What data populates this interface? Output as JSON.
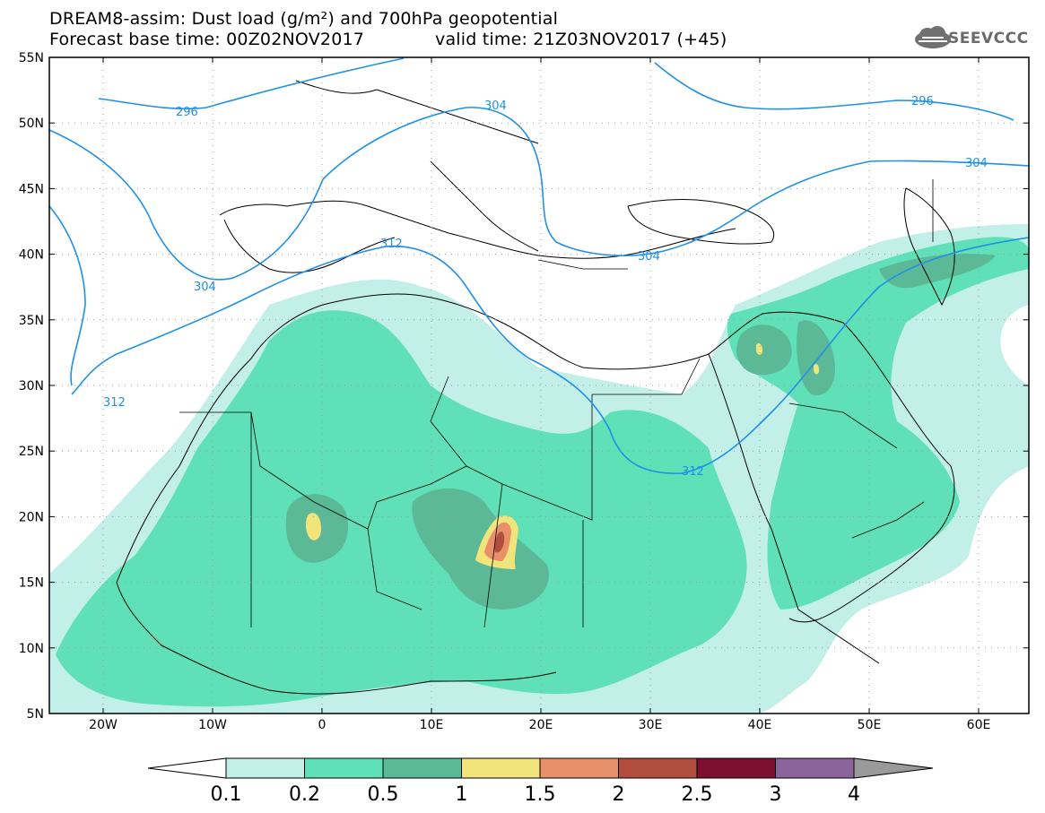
{
  "header": {
    "title": "DREAM8-assim: Dust load (g/m²) and 700hPa geopotential",
    "base_time": "Forecast base time: 00Z02NOV2017",
    "valid_time": "valid time: 21Z03NOV2017 (+45)"
  },
  "logo": {
    "text": "SEEVCCC",
    "icon": "cloud-icon"
  },
  "axes": {
    "lat_labels": [
      "55N",
      "50N",
      "45N",
      "40N",
      "35N",
      "30N",
      "25N",
      "20N",
      "15N",
      "10N",
      "5N"
    ],
    "lon_labels": [
      "20W",
      "10W",
      "0",
      "10E",
      "20E",
      "30E",
      "40E",
      "50E",
      "60E"
    ]
  },
  "contour_labels": [
    "296",
    "304",
    "312",
    "304",
    "312",
    "304",
    "296",
    "304",
    "312"
  ],
  "colorbar": {
    "labels": [
      "0.1",
      "0.2",
      "0.5",
      "1",
      "1.5",
      "2",
      "2.5",
      "3",
      "4"
    ],
    "colors": {
      "c1": "#c2efe7",
      "c2": "#5fe0b7",
      "c3": "#5bb997",
      "c4": "#f1e47a",
      "c5": "#e8906a",
      "c6": "#b24e3e",
      "c7": "#7d1030",
      "c8": "#8a659b",
      "c9": "#9a9a9a"
    }
  },
  "colors": {
    "contour": "#1e90e8",
    "frame": "#000000",
    "border": "#000000"
  }
}
